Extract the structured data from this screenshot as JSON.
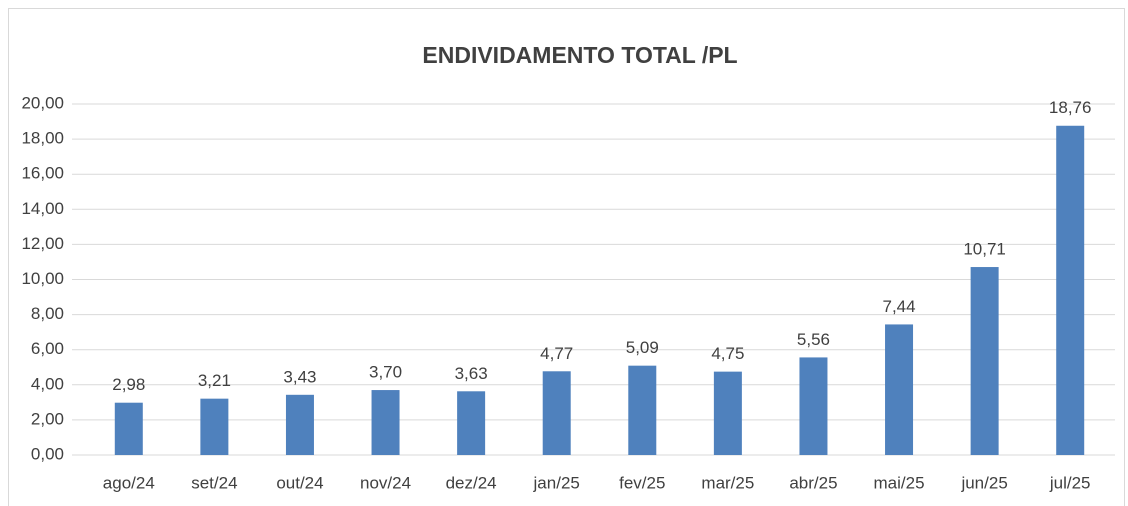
{
  "chart_data": {
    "type": "bar",
    "title": "ENDIVIDAMENTO TOTAL /PL",
    "categories": [
      "ago/24",
      "set/24",
      "out/24",
      "nov/24",
      "dez/24",
      "jan/25",
      "fev/25",
      "mar/25",
      "abr/25",
      "mai/25",
      "jun/25",
      "jul/25"
    ],
    "values": [
      2.98,
      3.21,
      3.43,
      3.7,
      3.63,
      4.77,
      5.09,
      4.75,
      5.56,
      7.44,
      10.71,
      18.76
    ],
    "value_labels": [
      "2,98",
      "3,21",
      "3,43",
      "3,70",
      "3,63",
      "4,77",
      "5,09",
      "4,75",
      "5,56",
      "7,44",
      "10,71",
      "18,76"
    ],
    "color": "#4f81bd",
    "ylim": [
      0,
      20
    ],
    "yticks": [
      {
        "value": 0,
        "label": "0,00"
      },
      {
        "value": 2,
        "label": "2,00"
      },
      {
        "value": 4,
        "label": "4,00"
      },
      {
        "value": 6,
        "label": "6,00"
      },
      {
        "value": 8,
        "label": "8,00"
      },
      {
        "value": 10,
        "label": "10,00"
      },
      {
        "value": 12,
        "label": "12,00"
      },
      {
        "value": 14,
        "label": "14,00"
      },
      {
        "value": 16,
        "label": "16,00"
      },
      {
        "value": 18,
        "label": "18,00"
      },
      {
        "value": 20,
        "label": "20,00"
      }
    ],
    "grid": true
  }
}
